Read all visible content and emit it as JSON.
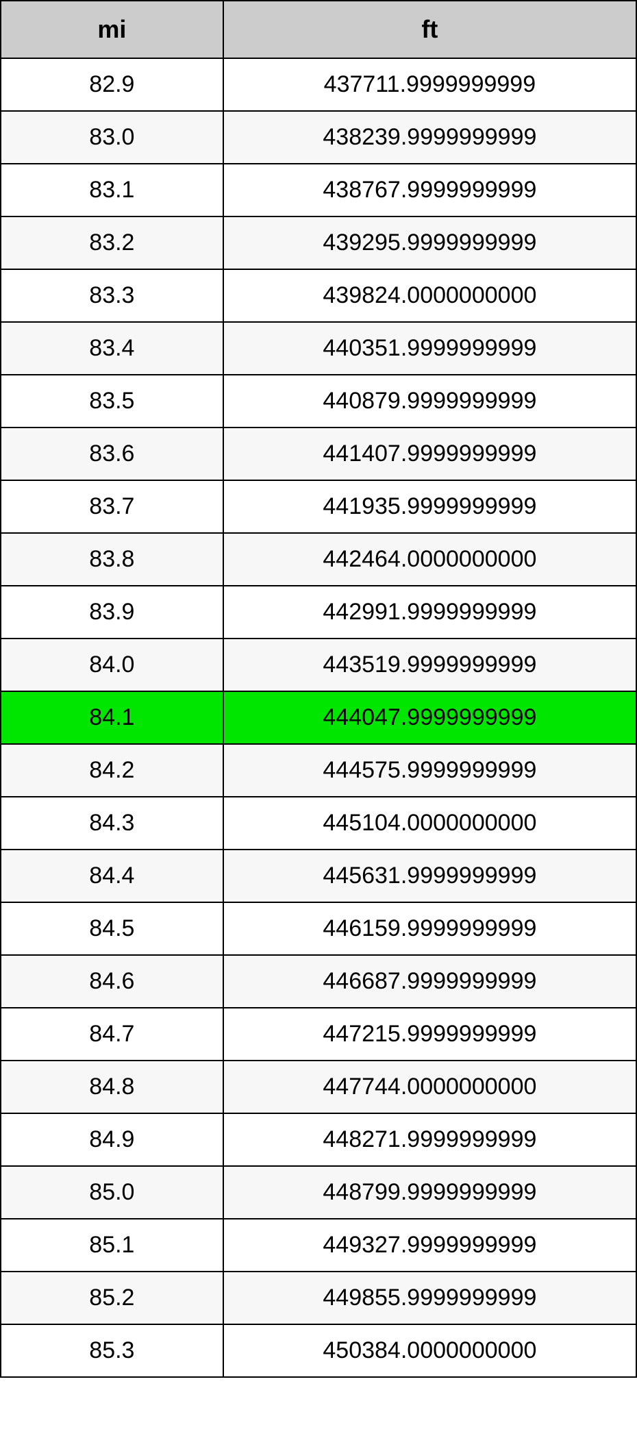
{
  "table": {
    "type": "table",
    "header_background_color": "#cccccc",
    "header_font_size": 36,
    "header_font_weight": "bold",
    "cell_font_size": 34,
    "border_color": "#000000",
    "border_width": 2,
    "row_alt_background": "#f7f7f7",
    "row_background": "#ffffff",
    "highlight_color": "#00e600",
    "text_color": "#000000",
    "columns": [
      {
        "key": "mi",
        "label": "mi",
        "width_pct": 35,
        "align": "center"
      },
      {
        "key": "ft",
        "label": "ft",
        "width_pct": 65,
        "align": "center"
      }
    ],
    "highlighted_row_index": 12,
    "rows": [
      {
        "mi": "82.9",
        "ft": "437711.9999999999"
      },
      {
        "mi": "83.0",
        "ft": "438239.9999999999"
      },
      {
        "mi": "83.1",
        "ft": "438767.9999999999"
      },
      {
        "mi": "83.2",
        "ft": "439295.9999999999"
      },
      {
        "mi": "83.3",
        "ft": "439824.0000000000"
      },
      {
        "mi": "83.4",
        "ft": "440351.9999999999"
      },
      {
        "mi": "83.5",
        "ft": "440879.9999999999"
      },
      {
        "mi": "83.6",
        "ft": "441407.9999999999"
      },
      {
        "mi": "83.7",
        "ft": "441935.9999999999"
      },
      {
        "mi": "83.8",
        "ft": "442464.0000000000"
      },
      {
        "mi": "83.9",
        "ft": "442991.9999999999"
      },
      {
        "mi": "84.0",
        "ft": "443519.9999999999"
      },
      {
        "mi": "84.1",
        "ft": "444047.9999999999"
      },
      {
        "mi": "84.2",
        "ft": "444575.9999999999"
      },
      {
        "mi": "84.3",
        "ft": "445104.0000000000"
      },
      {
        "mi": "84.4",
        "ft": "445631.9999999999"
      },
      {
        "mi": "84.5",
        "ft": "446159.9999999999"
      },
      {
        "mi": "84.6",
        "ft": "446687.9999999999"
      },
      {
        "mi": "84.7",
        "ft": "447215.9999999999"
      },
      {
        "mi": "84.8",
        "ft": "447744.0000000000"
      },
      {
        "mi": "84.9",
        "ft": "448271.9999999999"
      },
      {
        "mi": "85.0",
        "ft": "448799.9999999999"
      },
      {
        "mi": "85.1",
        "ft": "449327.9999999999"
      },
      {
        "mi": "85.2",
        "ft": "449855.9999999999"
      },
      {
        "mi": "85.3",
        "ft": "450384.0000000000"
      }
    ]
  }
}
